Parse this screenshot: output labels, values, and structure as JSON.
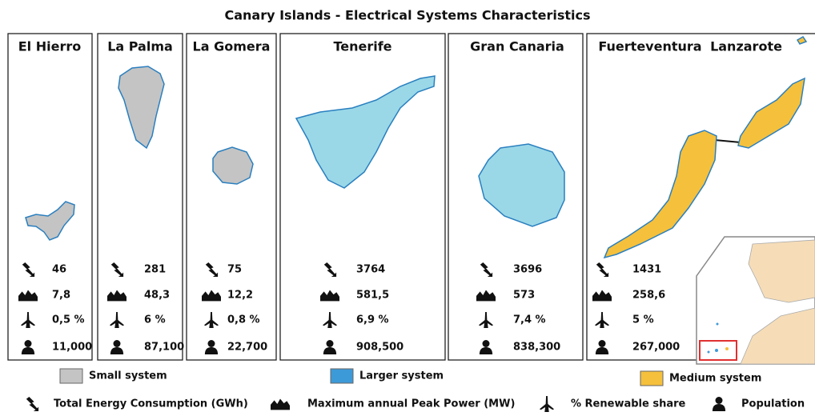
{
  "title": "Canary Islands - Electrical Systems Characteristics",
  "panels": [
    {
      "names": [
        "El Hierro"
      ],
      "system": "small",
      "stats": [
        "46",
        "7,8",
        "0,5 %",
        "11,000"
      ]
    },
    {
      "names": [
        "La Palma"
      ],
      "system": "small",
      "stats": [
        "281",
        "48,3",
        "6 %",
        "87,100"
      ]
    },
    {
      "names": [
        "La Gomera"
      ],
      "system": "small",
      "stats": [
        "75",
        "12,2",
        "0,8 %",
        "22,700"
      ]
    },
    {
      "names": [
        "Tenerife"
      ],
      "system": "larger",
      "stats": [
        "3764",
        "581,5",
        "6,9 %",
        "908,500"
      ]
    },
    {
      "names": [
        "Gran Canaria"
      ],
      "system": "larger",
      "stats": [
        "3696",
        "573",
        "7,4 %",
        "838,300"
      ]
    },
    {
      "names": [
        "Fuerteventura",
        "Lanzarote"
      ],
      "system": "medium",
      "stats": [
        "1431",
        "258,6",
        "5 %",
        "267,000"
      ]
    }
  ],
  "legend": {
    "systems": [
      {
        "key": "small",
        "label": "Small system",
        "color": "#c4c4c4"
      },
      {
        "key": "larger",
        "label": "Larger system",
        "color": "#3d9ad8"
      },
      {
        "key": "medium",
        "label": "Medium system",
        "color": "#f5c03c"
      }
    ],
    "indicators": [
      "Total Energy Consumption (GWh)",
      "Maximum annual Peak Power (MW)",
      "% Renewable share",
      "Population"
    ]
  }
}
